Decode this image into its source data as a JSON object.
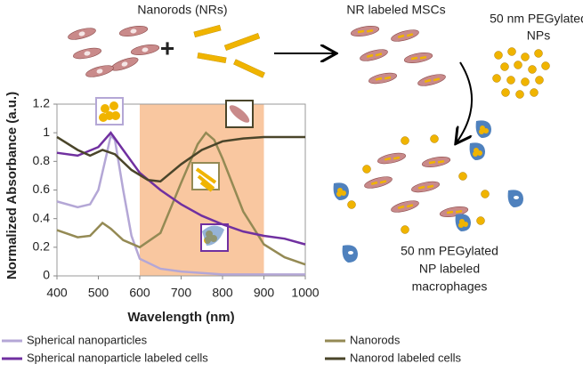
{
  "chart_data": {
    "type": "line",
    "xlabel": "Wavelength (nm)",
    "ylabel": "Normalized Absorbance (a.u.)",
    "xlim": [
      400,
      1000
    ],
    "xticks": [
      400,
      500,
      600,
      700,
      800,
      900,
      1000
    ],
    "ylim": [
      0,
      1.2
    ],
    "yticks": [
      0,
      0.2,
      0.4,
      0.6,
      0.8,
      1,
      1.2
    ],
    "shaded_region": [
      600,
      900
    ],
    "shaded_color": "#f9c7a0",
    "legend": "bottom",
    "series": [
      {
        "name": "Spherical nanoparticles",
        "color": "#b4a7d6",
        "x": [
          400,
          450,
          480,
          500,
          520,
          530,
          540,
          560,
          580,
          600,
          650,
          700,
          800,
          900,
          1000
        ],
        "values": [
          0.52,
          0.48,
          0.5,
          0.6,
          0.85,
          0.98,
          0.95,
          0.6,
          0.28,
          0.12,
          0.05,
          0.03,
          0.01,
          0.01,
          0.01
        ]
      },
      {
        "name": "Nanorods",
        "color": "#948a54",
        "x": [
          400,
          450,
          480,
          510,
          530,
          560,
          600,
          650,
          700,
          740,
          760,
          780,
          800,
          850,
          900,
          950,
          1000
        ],
        "values": [
          0.32,
          0.27,
          0.28,
          0.37,
          0.33,
          0.25,
          0.2,
          0.3,
          0.65,
          0.92,
          1.0,
          0.95,
          0.82,
          0.45,
          0.22,
          0.13,
          0.08
        ]
      },
      {
        "name": "Spherical nanoparticle labeled cells",
        "color": "#7030a0",
        "x": [
          400,
          450,
          500,
          530,
          560,
          600,
          650,
          700,
          750,
          800,
          850,
          900,
          950,
          1000
        ],
        "values": [
          0.86,
          0.84,
          0.9,
          1.0,
          0.88,
          0.72,
          0.6,
          0.5,
          0.42,
          0.36,
          0.31,
          0.28,
          0.26,
          0.22
        ]
      },
      {
        "name": "Nanorod labeled cells",
        "color": "#4a452a",
        "x": [
          400,
          450,
          480,
          510,
          540,
          580,
          620,
          650,
          700,
          750,
          800,
          850,
          900,
          950,
          1000
        ],
        "values": [
          0.97,
          0.88,
          0.84,
          0.88,
          0.85,
          0.74,
          0.67,
          0.66,
          0.78,
          0.88,
          0.94,
          0.96,
          0.97,
          0.97,
          0.97
        ]
      }
    ]
  },
  "diagram": {
    "nanorods_label": "Nanorods (NRs)",
    "plus": "+",
    "msc_label": "NR labeled MSCs",
    "np_label": [
      "50 nm PEGylated",
      "NPs"
    ],
    "macrophage_label": [
      "50 nm PEGylated",
      "NP labeled",
      "macrophages"
    ]
  }
}
